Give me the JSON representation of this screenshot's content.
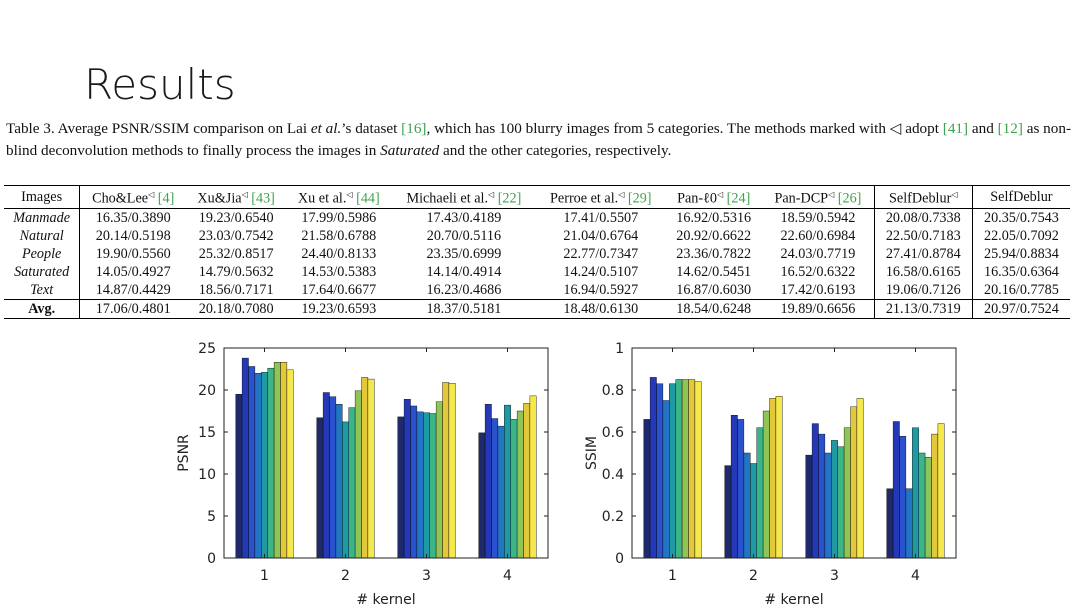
{
  "slide": {
    "title": "Results"
  },
  "caption": {
    "part1": "Table 3. Average PSNR/SSIM comparison on Lai ",
    "etal": "et al.",
    "part2": "’s dataset ",
    "ref1": "[16]",
    "part3": ", which has 100 blurry images from 5 categories.  The methods marked with ",
    "mark": "◁",
    "part4": " adopt ",
    "ref2": "[41]",
    "part5": " and ",
    "ref3": "[12]",
    "part6": " as non-blind deconvolution methods to finally process the images in ",
    "saturated": "Saturated",
    "part7": " and the other categories, respectively."
  },
  "table": {
    "headers": [
      {
        "name": "Images",
        "mark": "",
        "ref": ""
      },
      {
        "name": "Cho&Lee",
        "mark": "◁",
        "ref": "[4]"
      },
      {
        "name": "Xu&Jia",
        "mark": "◁",
        "ref": "[43]"
      },
      {
        "name": "Xu et al.",
        "mark": "◁",
        "ref": "[44]"
      },
      {
        "name": "Michaeli et al.",
        "mark": "◁",
        "ref": "[22]"
      },
      {
        "name": "Perroe et al.",
        "mark": "◁",
        "ref": "[29]"
      },
      {
        "name": "Pan-ℓ0",
        "mark": "◁",
        "ref": "[24]"
      },
      {
        "name": "Pan-DCP",
        "mark": "◁",
        "ref": "[26]"
      },
      {
        "name": "SelfDeblur",
        "mark": "◁",
        "ref": ""
      },
      {
        "name": "SelfDeblur",
        "mark": "",
        "ref": ""
      }
    ],
    "rows": [
      {
        "label": "Manmade",
        "values": [
          "16.35/0.3890",
          "19.23/0.6540",
          "17.99/0.5986",
          "17.43/0.4189",
          "17.41/0.5507",
          "16.92/0.5316",
          "18.59/0.5942",
          "20.08/0.7338",
          "20.35/0.7543"
        ]
      },
      {
        "label": "Natural",
        "values": [
          "20.14/0.5198",
          "23.03/0.7542",
          "21.58/0.6788",
          "20.70/0.5116",
          "21.04/0.6764",
          "20.92/0.6622",
          "22.60/0.6984",
          "22.50/0.7183",
          "22.05/0.7092"
        ]
      },
      {
        "label": "People",
        "values": [
          "19.90/0.5560",
          "25.32/0.8517",
          "24.40/0.8133",
          "23.35/0.6999",
          "22.77/0.7347",
          "23.36/0.7822",
          "24.03/0.7719",
          "27.41/0.8784",
          "25.94/0.8834"
        ]
      },
      {
        "label": "Saturated",
        "values": [
          "14.05/0.4927",
          "14.79/0.5632",
          "14.53/0.5383",
          "14.14/0.4914",
          "14.24/0.5107",
          "14.62/0.5451",
          "16.52/0.6322",
          "16.58/0.6165",
          "16.35/0.6364"
        ]
      },
      {
        "label": "Text",
        "values": [
          "14.87/0.4429",
          "18.56/0.7171",
          "17.64/0.6677",
          "16.23/0.4686",
          "16.94/0.5927",
          "16.87/0.6030",
          "17.42/0.6193",
          "19.06/0.7126",
          "20.16/0.7785"
        ]
      }
    ],
    "avg": {
      "label": "Avg.",
      "values": [
        "17.06/0.4801",
        "20.18/0.7080",
        "19.23/0.6593",
        "18.37/0.5181",
        "18.48/0.6130",
        "18.54/0.6248",
        "19.89/0.6656",
        "21.13/0.7319",
        "20.97/0.7524"
      ]
    }
  },
  "chart_data": [
    {
      "type": "bar",
      "xlabel": "# kernel",
      "ylabel": "PSNR",
      "ylim": [
        0,
        25
      ],
      "yticks": [
        0,
        5,
        10,
        15,
        20,
        25
      ],
      "categories": [
        "1",
        "2",
        "3",
        "4"
      ],
      "groups": [
        [
          19.5,
          23.8,
          22.8,
          22.0,
          22.1,
          22.6,
          23.3,
          23.3,
          22.4
        ],
        [
          16.7,
          19.7,
          19.2,
          18.3,
          16.2,
          17.9,
          19.9,
          21.5,
          21.3
        ],
        [
          16.8,
          18.9,
          18.1,
          17.4,
          17.3,
          17.2,
          18.6,
          20.9,
          20.8
        ],
        [
          14.9,
          18.3,
          16.6,
          15.7,
          18.2,
          16.5,
          17.5,
          18.4,
          19.3
        ]
      ],
      "colors": [
        "#1f2a6b",
        "#2438b8",
        "#2a52cf",
        "#2175c4",
        "#1f9aa4",
        "#3bb487",
        "#8fc456",
        "#e3c83c",
        "#f5e84a"
      ],
      "grid": false
    },
    {
      "type": "bar",
      "xlabel": "# kernel",
      "ylabel": "SSIM",
      "ylim": [
        0,
        1
      ],
      "yticks": [
        0,
        0.2,
        0.4,
        0.6,
        0.8,
        1
      ],
      "categories": [
        "1",
        "2",
        "3",
        "4"
      ],
      "groups": [
        [
          0.66,
          0.86,
          0.83,
          0.75,
          0.83,
          0.85,
          0.85,
          0.85,
          0.84
        ],
        [
          0.44,
          0.68,
          0.66,
          0.5,
          0.45,
          0.62,
          0.7,
          0.76,
          0.77
        ],
        [
          0.49,
          0.64,
          0.59,
          0.5,
          0.56,
          0.53,
          0.62,
          0.72,
          0.76
        ],
        [
          0.33,
          0.65,
          0.58,
          0.33,
          0.62,
          0.5,
          0.48,
          0.59,
          0.64
        ]
      ],
      "colors": [
        "#1f2a6b",
        "#2438b8",
        "#2a52cf",
        "#2175c4",
        "#1f9aa4",
        "#3bb487",
        "#8fc456",
        "#e3c83c",
        "#f5e84a"
      ],
      "grid": false
    }
  ]
}
